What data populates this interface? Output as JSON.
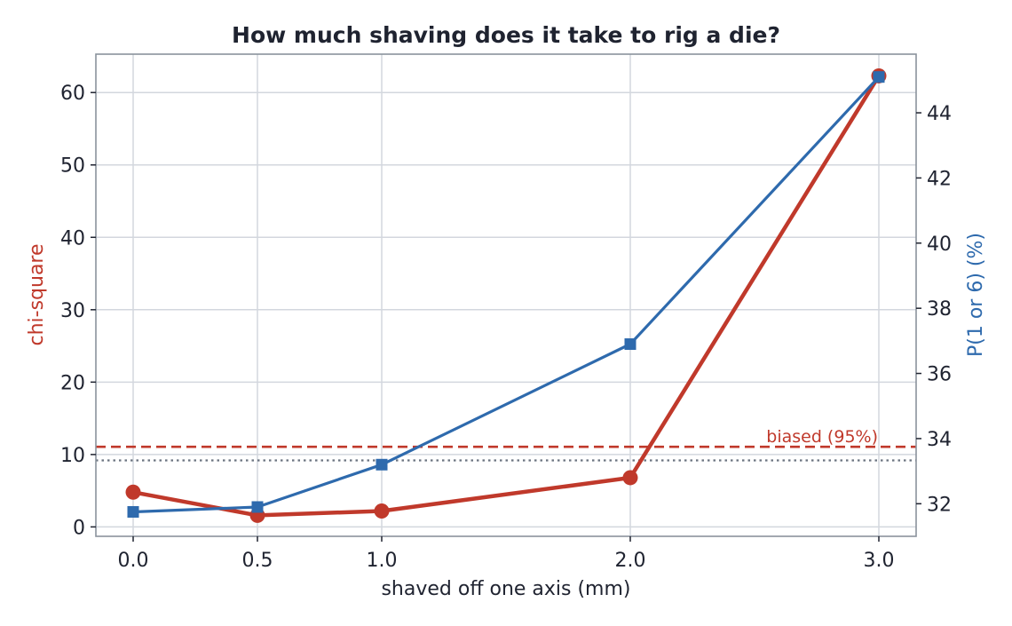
{
  "chart_data": {
    "type": "line",
    "title": "How much shaving does it take to rig a die?",
    "xlabel": "shaved off one axis  (mm)",
    "ylabel_left": "chi-square",
    "ylabel_right": "P(1 or 6)  (%)",
    "x": [
      0.0,
      0.5,
      1.0,
      2.0,
      3.0
    ],
    "x_tick_labels": [
      "0.0",
      "0.5",
      "1.0",
      "2.0",
      "3.0"
    ],
    "xlim": [
      -0.15,
      3.15
    ],
    "ylim_left": [
      -1.3,
      65.3
    ],
    "ylim_right": [
      31.0,
      45.8
    ],
    "left_ticks": [
      0,
      10,
      20,
      30,
      40,
      50,
      60
    ],
    "right_ticks": [
      32,
      34,
      36,
      38,
      40,
      42,
      44
    ],
    "grid": true,
    "series": [
      {
        "axis": "left",
        "marker": "circle",
        "color": "#c0392b",
        "values": [
          4.8,
          1.6,
          2.2,
          6.8,
          62.3
        ]
      },
      {
        "axis": "right",
        "marker": "square",
        "color": "#2e6aad",
        "values": [
          31.75,
          31.9,
          33.2,
          36.9,
          45.1
        ]
      }
    ],
    "reference_lines": [
      {
        "axis": "left",
        "value": 11.07,
        "style": "dashed",
        "color": "#c0392b",
        "label": "biased (95%)"
      },
      {
        "axis": "right",
        "value": 33.33,
        "style": "dotted",
        "color": "#6b7380",
        "label": ""
      }
    ]
  }
}
